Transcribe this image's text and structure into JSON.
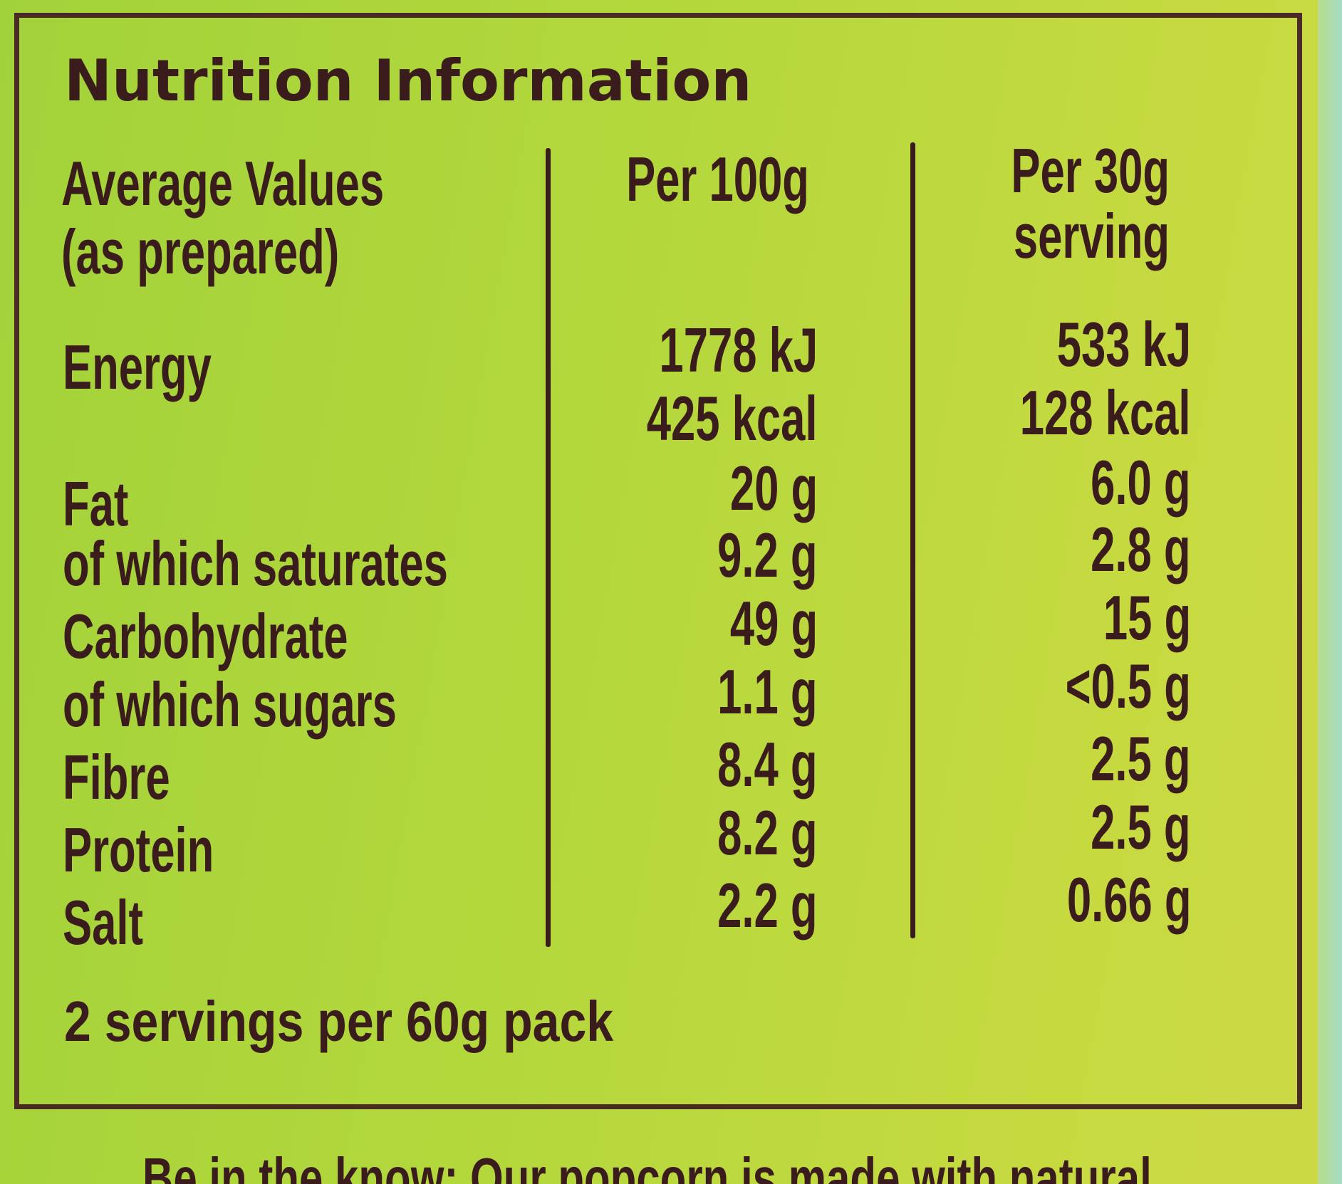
{
  "title": "Nutrition Information",
  "table": {
    "columns": [
      [
        "Average Values",
        "(as prepared)"
      ],
      [
        "Per 100g"
      ],
      [
        "Per 30g",
        "serving"
      ]
    ],
    "rows": [
      {
        "label": "Energy",
        "per_100g": [
          "1778 kJ",
          "425 kcal"
        ],
        "per_serving": [
          "533 kJ",
          "128 kcal"
        ]
      },
      {
        "label": "Fat",
        "per_100g": [
          "20 g"
        ],
        "per_serving": [
          "6.0 g"
        ]
      },
      {
        "label": "of which saturates",
        "per_100g": [
          "9.2 g"
        ],
        "per_serving": [
          "2.8 g"
        ]
      },
      {
        "label": "Carbohydrate",
        "per_100g": [
          "49 g"
        ],
        "per_serving": [
          "15 g"
        ]
      },
      {
        "label": "of which sugars",
        "per_100g": [
          "1.1 g"
        ],
        "per_serving": [
          "<0.5 g"
        ]
      },
      {
        "label": "Fibre",
        "per_100g": [
          "8.4 g"
        ],
        "per_serving": [
          "2.5 g"
        ]
      },
      {
        "label": "Protein",
        "per_100g": [
          "8.2 g"
        ],
        "per_serving": [
          "2.5 g"
        ]
      },
      {
        "label": "Salt",
        "per_100g": [
          "2.2 g"
        ],
        "per_serving": [
          "0.66 g"
        ]
      }
    ]
  },
  "footer": "2 servings per 60g pack",
  "note": "Be in the know: Our popcorn is made with natural"
}
